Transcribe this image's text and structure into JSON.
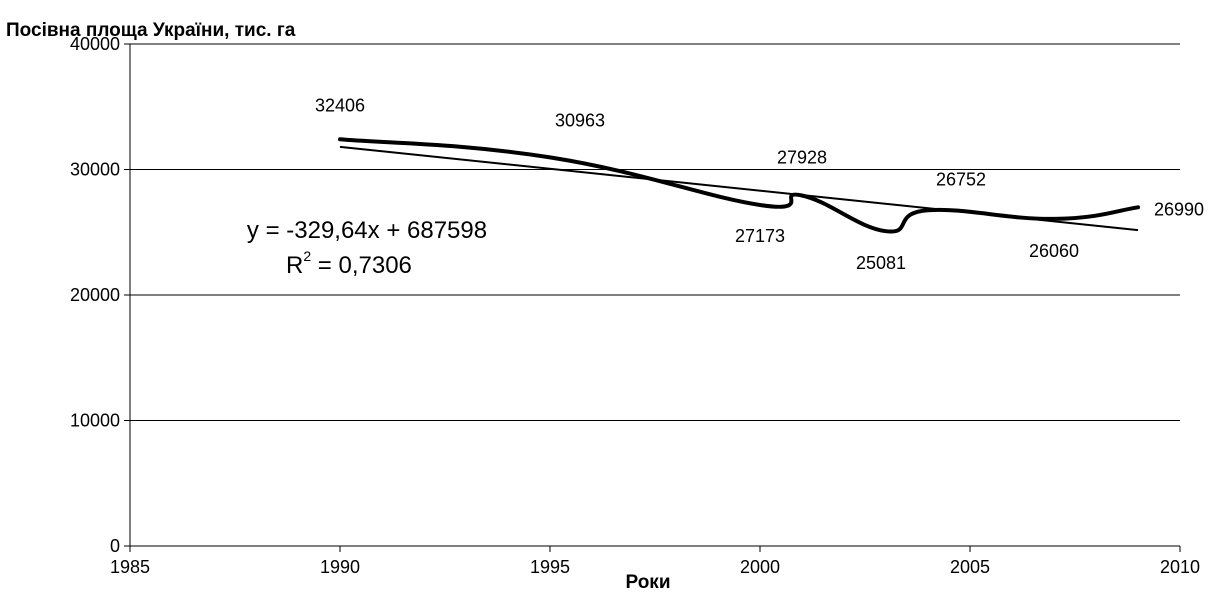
{
  "chart_data": {
    "type": "line",
    "ylabel": "Посівна  площа  України, тис. га",
    "xlabel": "Роки",
    "xlim": [
      1985,
      2010
    ],
    "ylim": [
      0,
      40000
    ],
    "x_ticks": [
      1985,
      1990,
      1995,
      2000,
      2005,
      2010
    ],
    "y_ticks": [
      0,
      10000,
      20000,
      30000,
      40000
    ],
    "grid": "horizontal",
    "series": [
      {
        "values": [
          {
            "x": 1990,
            "y": 32406,
            "label": "32406"
          },
          {
            "x": 1995,
            "y": 30963,
            "label": "30963"
          },
          {
            "x": 2000,
            "y": 27173,
            "label": "27173"
          },
          {
            "x": 2001,
            "y": 27928,
            "label": "27928"
          },
          {
            "x": 2003,
            "y": 25081,
            "label": "25081"
          },
          {
            "x": 2004,
            "y": 26752,
            "label": "26752"
          },
          {
            "x": 2007,
            "y": 26060,
            "label": "26060"
          },
          {
            "x": 2009,
            "y": 26990,
            "label": "26990"
          }
        ]
      }
    ],
    "trendline": {
      "type": "linear",
      "x_range": [
        1990,
        2009
      ],
      "equation": "y = -329,64x + 687598",
      "r2_prefix": "R",
      "r2_exp": "2",
      "r2_value": " = 0,7306"
    }
  }
}
